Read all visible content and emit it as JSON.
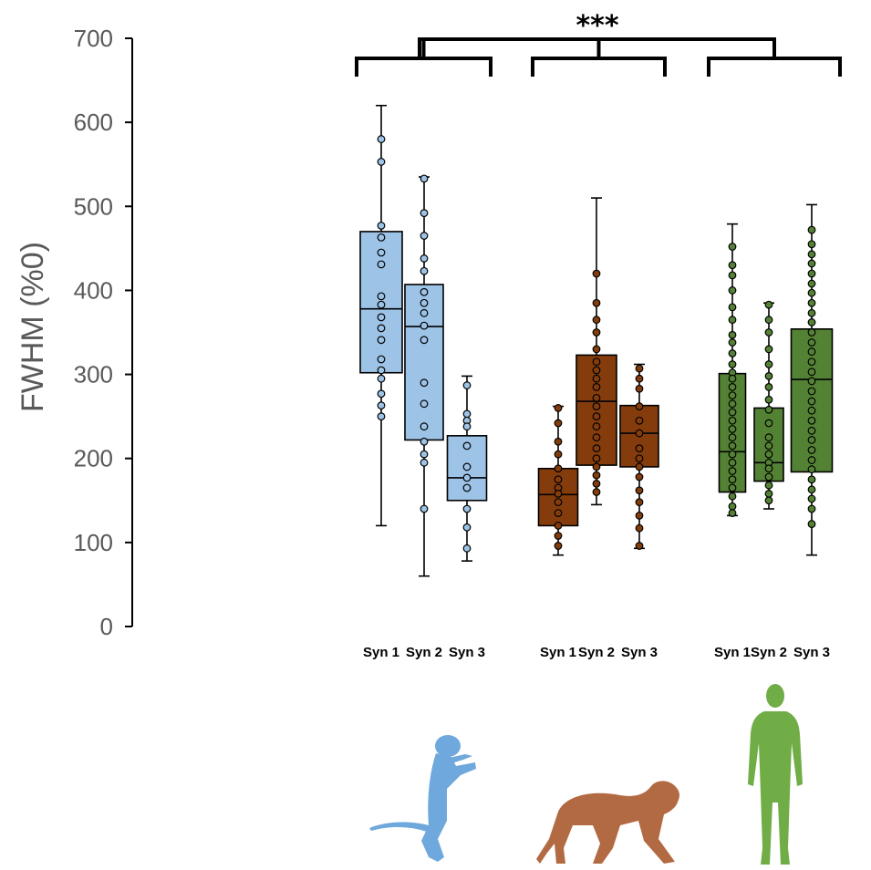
{
  "chart_data": {
    "type": "box",
    "title": "",
    "xlabel": "",
    "ylabel": "FWHM (%0)",
    "ylim": [
      0,
      700
    ],
    "yticks": [
      "0",
      "100",
      "200",
      "300",
      "400",
      "500",
      "600",
      "700"
    ],
    "significance": "***",
    "colors": {
      "macaque": "#9dc3e6",
      "baboon": "#843c0c",
      "human": "#548235",
      "icon_macaque": "#6fa8dc",
      "icon_baboon": "#b26a42",
      "icon_human": "#70ad47"
    },
    "groups": [
      {
        "icon": "monkey-sitting-icon",
        "color": "#9dc3e6",
        "boxes": [
          {
            "label": "Syn 1",
            "min": 120,
            "q1": 302,
            "median": 378,
            "q3": 470,
            "max": 620,
            "points": [
              580,
              553,
              477,
              463,
              445,
              431,
              393,
              383,
              368,
              355,
              341,
              318,
              305,
              295,
              277,
              263,
              250
            ]
          },
          {
            "label": "Syn 2",
            "min": 60,
            "q1": 222,
            "median": 357,
            "q3": 407,
            "max": 535,
            "points": [
              533,
              492,
              465,
              438,
              423,
              398,
              385,
              373,
              358,
              341,
              290,
              265,
              238,
              220,
              205,
              195,
              140
            ]
          },
          {
            "label": "Syn 3",
            "min": 78,
            "q1": 150,
            "median": 177,
            "q3": 227,
            "max": 298,
            "points": [
              287,
              253,
              245,
              238,
              215,
              190,
              177,
              165,
              140,
              118,
              93
            ]
          }
        ]
      },
      {
        "icon": "baboon-walking-icon",
        "color": "#843c0c",
        "boxes": [
          {
            "label": "Syn 1",
            "min": 85,
            "q1": 120,
            "median": 157,
            "q3": 188,
            "max": 262,
            "points": [
              260,
              242,
              220,
              205,
              188,
              175,
              165,
              158,
              148,
              135,
              120,
              108,
              96
            ]
          },
          {
            "label": "Syn 2",
            "min": 145,
            "q1": 192,
            "median": 268,
            "q3": 323,
            "max": 510,
            "points": [
              420,
              385,
              365,
              350,
              330,
              315,
              305,
              295,
              285,
              272,
              262,
              250,
              238,
              225,
              212,
              200,
              190,
              180,
              170,
              160
            ]
          },
          {
            "label": "Syn 3",
            "min": 93,
            "q1": 190,
            "median": 230,
            "q3": 263,
            "max": 312,
            "points": [
              307,
              295,
              283,
              262,
              245,
              230,
              212,
              200,
              190,
              178,
              162,
              148,
              132,
              117,
              96
            ]
          }
        ]
      },
      {
        "icon": "human-standing-icon",
        "color": "#548235",
        "boxes": [
          {
            "label": "Syn 1",
            "min": 132,
            "q1": 160,
            "median": 208,
            "q3": 301,
            "max": 479,
            "points": [
              452,
              430,
              418,
              400,
              380,
              365,
              347,
              338,
              325,
              312,
              302,
              295,
              285,
              275,
              265,
              255,
              245,
              235,
              225,
              215,
              205,
              195,
              185,
              175,
              165,
              155,
              143,
              135
            ]
          },
          {
            "label": "Syn 2",
            "min": 140,
            "q1": 173,
            "median": 195,
            "q3": 260,
            "max": 385,
            "points": [
              383,
              365,
              350,
              330,
              312,
              298,
              285,
              270,
              258,
              242,
              225,
              215,
              205,
              195,
              188,
              178,
              168,
              158,
              150
            ]
          },
          {
            "label": "Syn 3",
            "min": 85,
            "q1": 184,
            "median": 294,
            "q3": 354,
            "max": 502,
            "points": [
              472,
              455,
              443,
              432,
              420,
              408,
              397,
              385,
              373,
              362,
              350,
              338,
              327,
              315,
              303,
              292,
              280,
              268,
              257,
              245,
              233,
              222,
              210,
              198,
              187,
              175,
              163,
              152,
              140,
              122
            ]
          }
        ]
      }
    ]
  }
}
